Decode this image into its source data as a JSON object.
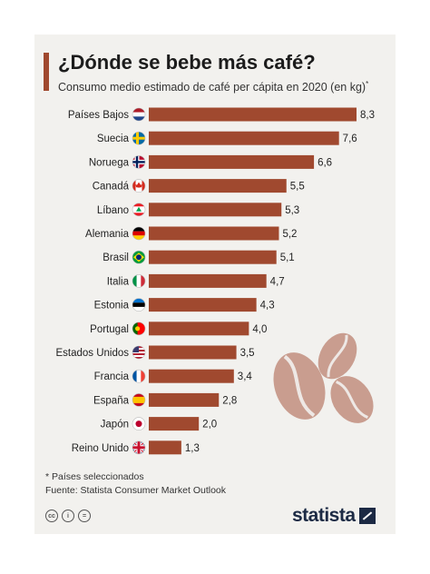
{
  "header": {
    "title": "¿Dónde se bebe más café?",
    "subtitle": "Consumo medio estimado de café per cápita en 2020 (en kg)",
    "subtitle_mark": "*"
  },
  "chart_data": {
    "type": "bar",
    "orientation": "horizontal",
    "title": "¿Dónde se bebe más café?",
    "subtitle": "Consumo medio estimado de café per cápita en 2020 (en kg)",
    "categories": [
      "Países Bajos",
      "Suecia",
      "Noruega",
      "Canadá",
      "Líbano",
      "Alemania",
      "Brasil",
      "Italia",
      "Estonia",
      "Portugal",
      "Estados Unidos",
      "Francia",
      "España",
      "Japón",
      "Reino Unido"
    ],
    "values": [
      8.3,
      7.6,
      6.6,
      5.5,
      5.3,
      5.2,
      5.1,
      4.7,
      4.3,
      4.0,
      3.5,
      3.4,
      2.8,
      2.0,
      1.3
    ],
    "value_labels": [
      "8,3",
      "7,6",
      "6,6",
      "5,5",
      "5,3",
      "5,2",
      "5,1",
      "4,7",
      "4,3",
      "4,0",
      "3,5",
      "3,4",
      "2,8",
      "2,0",
      "1,3"
    ],
    "xlim": [
      0,
      8.3
    ],
    "bar_color": "#a0492f",
    "grid": false,
    "legend": "none"
  },
  "flags": [
    "netherlands-flag",
    "sweden-flag",
    "norway-flag",
    "canada-flag",
    "lebanon-flag",
    "germany-flag",
    "brazil-flag",
    "italy-flag",
    "estonia-flag",
    "portugal-flag",
    "usa-flag",
    "france-flag",
    "spain-flag",
    "japan-flag",
    "uk-flag"
  ],
  "footer": {
    "footnote": "* Países seleccionados",
    "source": "Fuente: Statista Consumer Market Outlook",
    "logo": "statista",
    "license_icons": [
      "cc-icon",
      "by-icon",
      "nd-icon"
    ]
  },
  "colors": {
    "accent": "#a0492f",
    "background": "#f2f1ee",
    "logo": "#1c2a44"
  }
}
